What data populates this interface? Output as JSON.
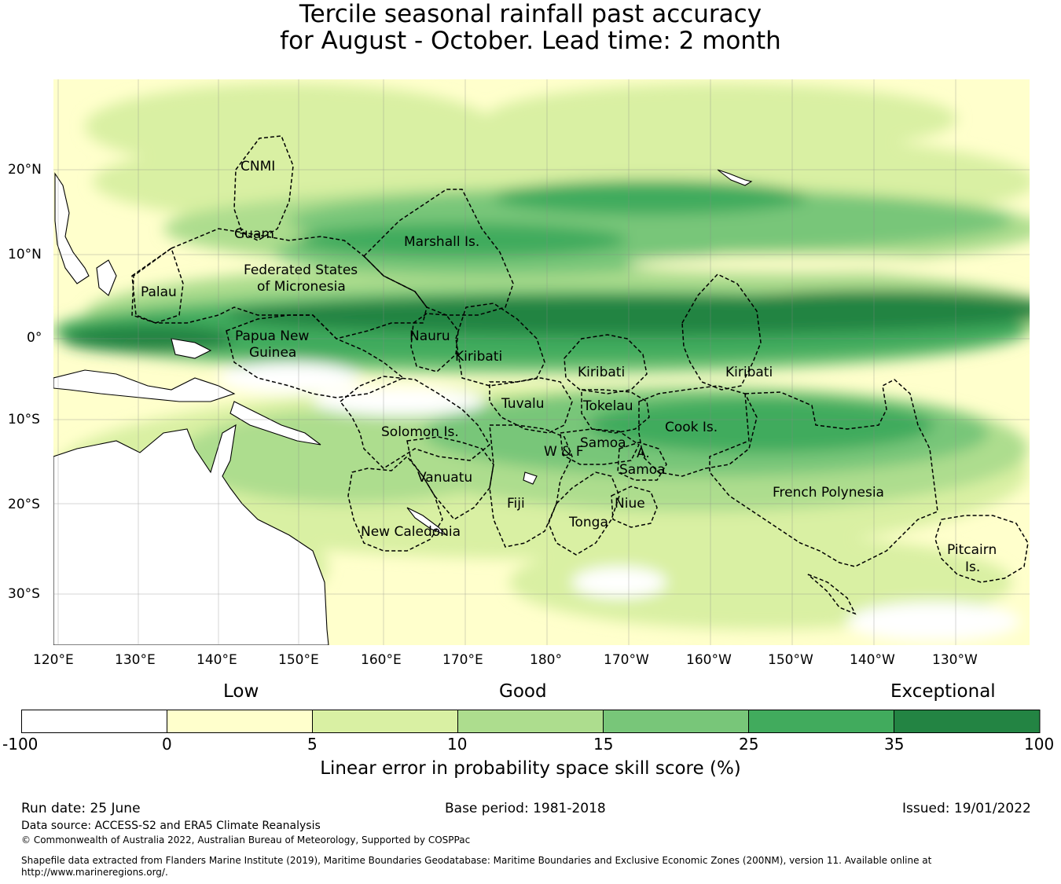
{
  "title_line1": "Tercile seasonal rainfall past accuracy",
  "title_line2": "for August - October. Lead time: 2 month",
  "lat_labels": [
    "20°N",
    "10°N",
    "0°",
    "10°S",
    "20°S",
    "30°S"
  ],
  "lon_labels": [
    "120°E",
    "130°E",
    "140°E",
    "150°E",
    "160°E",
    "170°E",
    "180°",
    "170°W",
    "160°W",
    "150°W",
    "140°W",
    "130°W"
  ],
  "regions": {
    "cnmi": "CNMI",
    "guam": "Guam",
    "marshall": "Marshall Is.",
    "fsm1": "Federated States",
    "fsm2": "of Micronesia",
    "palau": "Palau",
    "png1": "Papua New",
    "png2": "Guinea",
    "nauru": "Nauru",
    "kiribati_w": "Kiribati",
    "kiribati_c": "Kiribati",
    "kiribati_e": "Kiribati",
    "tuvalu": "Tuvalu",
    "tokelau": "Tokelau",
    "cook": "Cook Is.",
    "solomon": "Solomon Is.",
    "samoa": "Samoa",
    "wf": "W & F",
    "asamoa1": "A.",
    "asamoa2": "Samoa",
    "vanuatu": "Vanuatu",
    "fiji": "Fiji",
    "niue": "Niue",
    "tonga": "Tonga",
    "french_polynesia": "French Polynesia",
    "new_caledonia": "New Caledonia",
    "pitcairn1": "Pitcairn",
    "pitcairn2": "Is."
  },
  "colorbar": {
    "categories": [
      "Low",
      "Good",
      "Exceptional"
    ],
    "ticks": [
      "-100",
      "0",
      "5",
      "10",
      "15",
      "25",
      "35",
      "100"
    ],
    "colors": [
      "#ffffff",
      "#ffffcc",
      "#d9f0a3",
      "#addd8e",
      "#78c679",
      "#41ab5d",
      "#238443"
    ],
    "label": "Linear error in probability space skill score (%)"
  },
  "footer": {
    "run_date": "Run date: 25 June",
    "base_period": "Base period: 1981-2018",
    "issued": "Issued: 19/01/2022",
    "data_source": "Data source: ACCESS-S2 and ERA5 Climate Reanalysis",
    "copyright": "© Commonwealth of Australia 2022, Australian Bureau of Meteorology, Supported by COSPPac",
    "shapefile1": "Shapefile data extracted from Flanders Marine Institute (2019), Maritime Boundaries Geodatabase: Maritime Boundaries and Exclusive Economic Zones (200NM), version 11. Available online at",
    "shapefile2": "http://www.marineregions.org/."
  }
}
